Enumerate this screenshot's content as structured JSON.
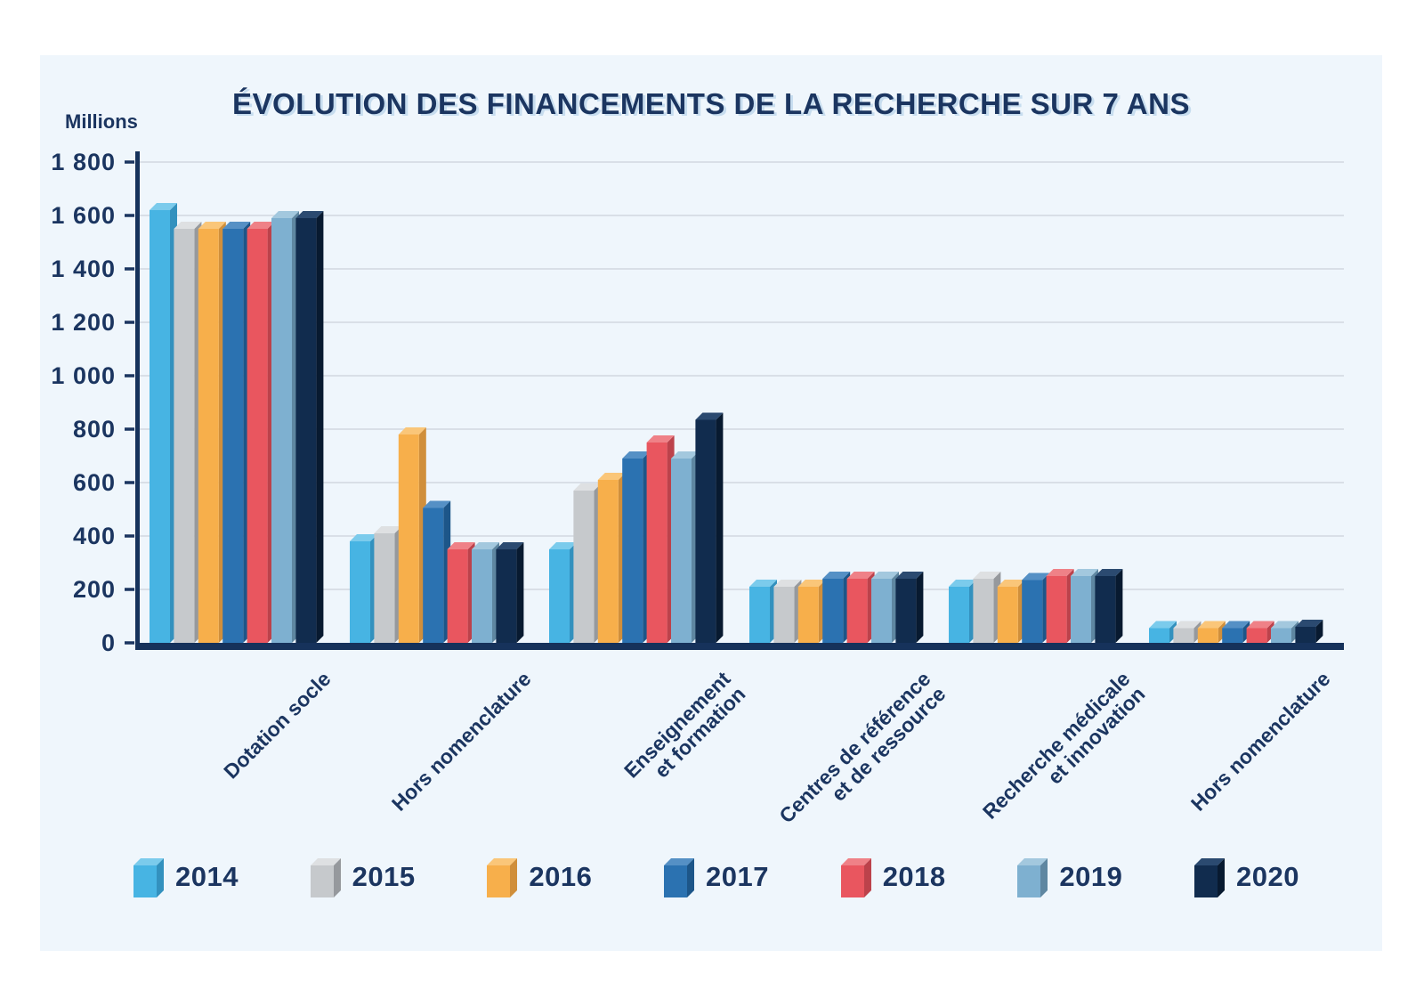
{
  "card": {
    "background": "#EFF6FC",
    "page_background": "#ffffff"
  },
  "header": {
    "title": "ÉVOLUTION DES FINANCEMENTS DE LA RECHERCHE SUR 7 ANS",
    "y_unit_label": "Millions"
  },
  "chart_data": {
    "type": "bar",
    "title": "ÉVOLUTION DES FINANCEMENTS DE LA RECHERCHE SUR 7 ANS",
    "y_unit": "Millions",
    "ylim": [
      0,
      1800
    ],
    "ytick_interval": 200,
    "yticks": [
      {
        "value": 0,
        "label": "0"
      },
      {
        "value": 200,
        "label": "200"
      },
      {
        "value": 400,
        "label": "400"
      },
      {
        "value": 600,
        "label": "600"
      },
      {
        "value": 800,
        "label": "800"
      },
      {
        "value": 1000,
        "label": "1 000"
      },
      {
        "value": 1200,
        "label": "1 200"
      },
      {
        "value": 1400,
        "label": "1 400"
      },
      {
        "value": 1600,
        "label": "1 600"
      },
      {
        "value": 1800,
        "label": "1 800"
      }
    ],
    "grid": true,
    "legend_position": "bottom",
    "categories": [
      {
        "lines": [
          "Dotation socle"
        ]
      },
      {
        "lines": [
          "Hors nomenclature"
        ]
      },
      {
        "lines": [
          "Enseignement",
          "et formation"
        ]
      },
      {
        "lines": [
          "Centres de référence",
          "et de ressource"
        ]
      },
      {
        "lines": [
          "Recherche médicale",
          "et innovation"
        ]
      },
      {
        "lines": [
          "Hors nomenclature"
        ]
      }
    ],
    "series": [
      {
        "name": "2014",
        "color": "#47B4E3",
        "side_color": "#3391BE",
        "top_color": "#7BCBEC",
        "values": [
          1620,
          380,
          350,
          210,
          210,
          55
        ]
      },
      {
        "name": "2015",
        "color": "#C6C9CC",
        "side_color": "#96999D",
        "top_color": "#DEE0E2",
        "values": [
          1550,
          410,
          570,
          210,
          240,
          55
        ]
      },
      {
        "name": "2016",
        "color": "#F7AF4B",
        "side_color": "#D08F3B",
        "top_color": "#FAC679",
        "values": [
          1550,
          780,
          610,
          210,
          210,
          55
        ]
      },
      {
        "name": "2017",
        "color": "#2B72B1",
        "side_color": "#1D5689",
        "top_color": "#5590C5",
        "values": [
          1550,
          505,
          690,
          240,
          235,
          55
        ]
      },
      {
        "name": "2018",
        "color": "#E9565F",
        "side_color": "#BC424B",
        "top_color": "#EF8187",
        "values": [
          1550,
          350,
          750,
          240,
          250,
          55
        ]
      },
      {
        "name": "2019",
        "color": "#7EB0D0",
        "side_color": "#5F87A1",
        "top_color": "#A3C8DE",
        "values": [
          1590,
          350,
          690,
          240,
          250,
          55
        ]
      },
      {
        "name": "2020",
        "color": "#112C4E",
        "side_color": "#081A30",
        "top_color": "#2B4A70",
        "values": [
          1590,
          350,
          835,
          240,
          250,
          60
        ]
      }
    ],
    "style": {
      "axis_color": "#16325B",
      "grid_color": "#D9DFE7",
      "text_color": "#1B3560"
    }
  }
}
